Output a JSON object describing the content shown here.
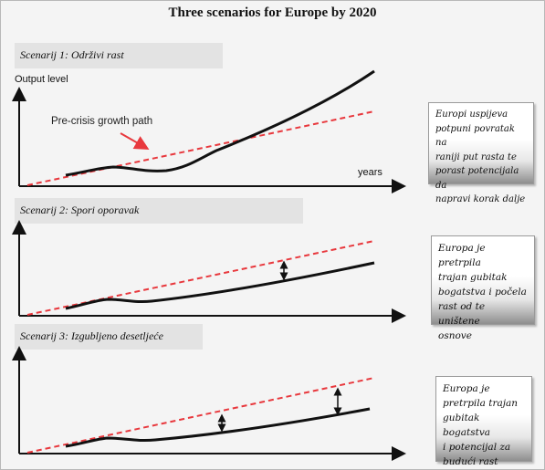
{
  "title": "Three scenarios for Europe by 2020",
  "panels": [
    {
      "scenario_label": "Scenarij 1: Održivi rast",
      "description": "Europi uspijeva\npotpuni povratak na\nraniji put rasta te\nporast potencijala da\nnapravi korak dalje"
    },
    {
      "scenario_label": "Scenarij 2: Spori oporavak",
      "description": "Europa je pretrpila\ntrajan gubitak\nbogatstva i počela\nrast od te uništene\nosnove"
    },
    {
      "scenario_label": "Scenarij 3: Izgubljeno desetljeće",
      "description": "Europa je\npretrpila trajan\ngubitak bogatstva\ni potencijal za\nbudući rast"
    }
  ],
  "y_axis_label": "Output level",
  "x_axis_label": "years",
  "callout": "Pre-crisis growth path",
  "colors": {
    "precrisis_path": "#e8383d",
    "output_path": "#111111",
    "axis": "#111111"
  }
}
